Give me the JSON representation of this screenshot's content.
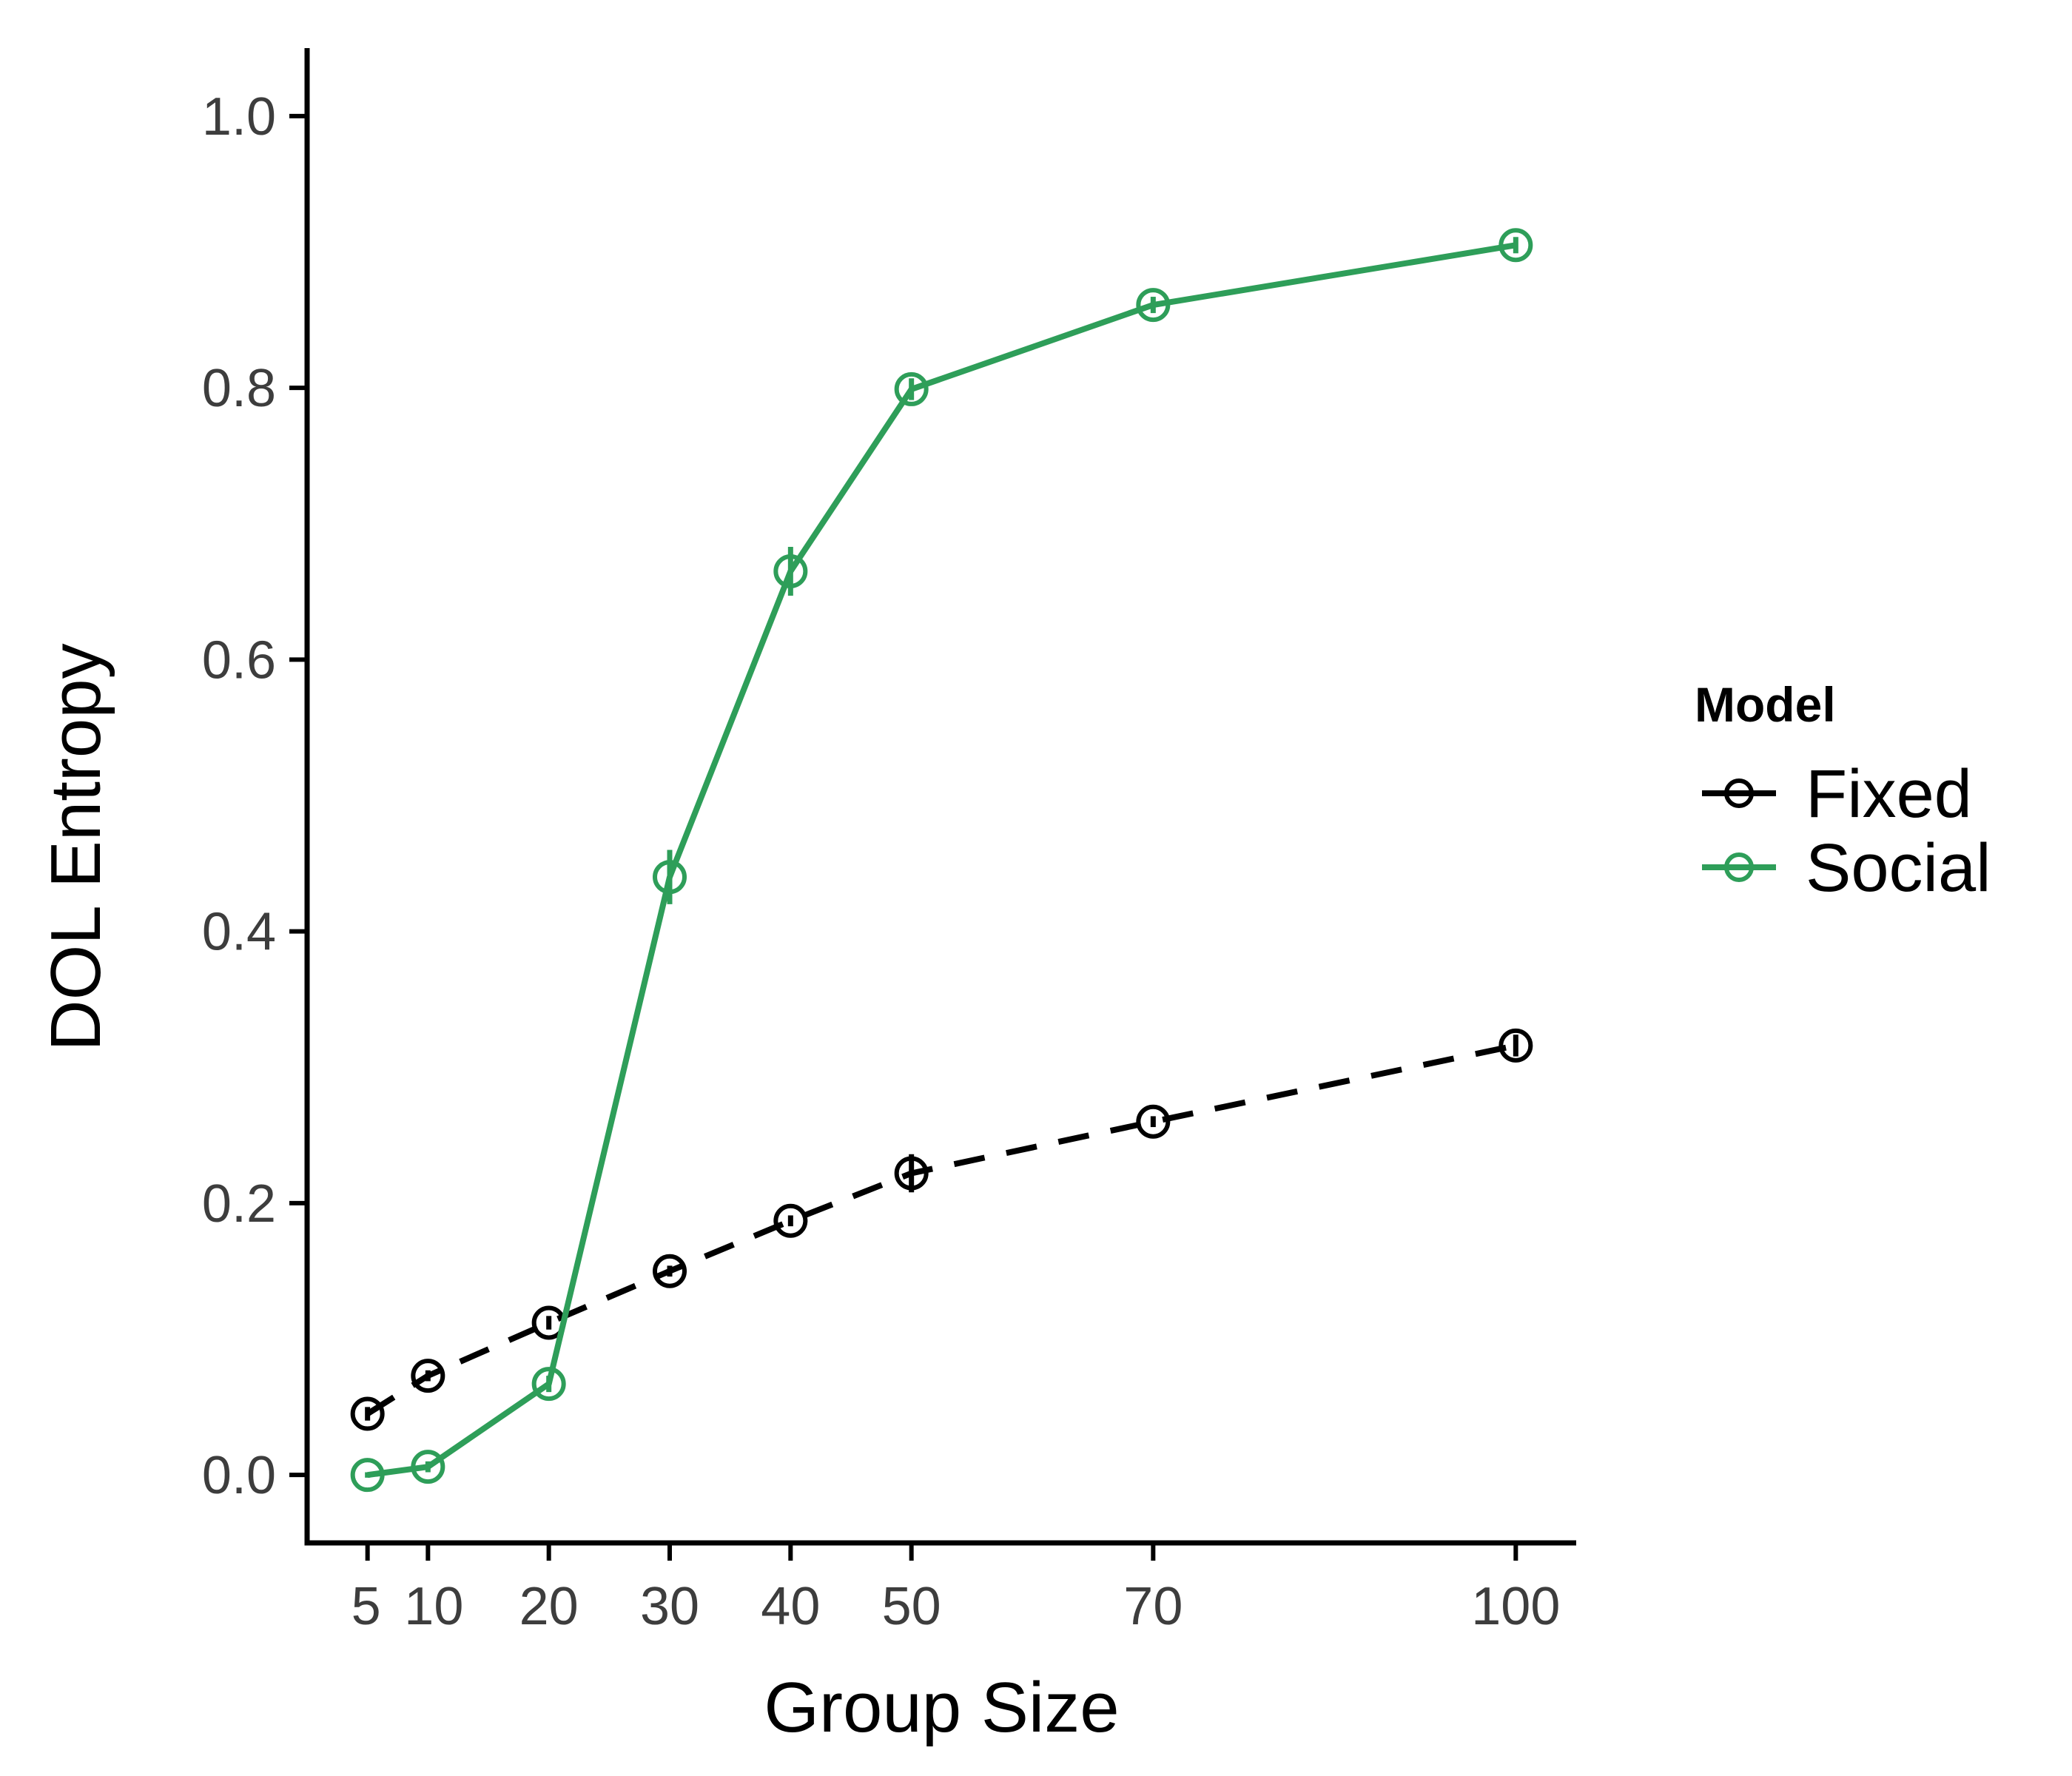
{
  "chart_data": {
    "type": "line",
    "xlabel": "Group Size",
    "ylabel": "DOL Entropy",
    "x": [
      5,
      10,
      20,
      30,
      40,
      50,
      70,
      100
    ],
    "x_ticks": [
      5,
      10,
      20,
      30,
      40,
      50,
      70,
      100
    ],
    "x_tick_labels": [
      "5",
      "10",
      "20",
      "30",
      "40",
      "50",
      "70",
      "100"
    ],
    "xlim": [
      0,
      105
    ],
    "ylim": [
      -0.05,
      1.05
    ],
    "y_ticks": [
      0.0,
      0.2,
      0.4,
      0.6,
      0.8,
      1.0
    ],
    "y_tick_labels": [
      "0.0",
      "0.2",
      "0.4",
      "0.6",
      "0.8",
      "1.0"
    ],
    "grid": false,
    "legend": {
      "title": "Model",
      "placement": "right"
    },
    "series": [
      {
        "name": "Fixed",
        "color": "#000000",
        "line_style": "dashed",
        "marker": "open-circle",
        "values": [
          0.045,
          0.073,
          0.112,
          0.15,
          0.187,
          0.222,
          0.26,
          0.316
        ],
        "error": [
          0.005,
          0.004,
          0.005,
          0.004,
          0.004,
          0.014,
          0.004,
          0.008
        ]
      },
      {
        "name": "Social",
        "color": "#2e9e59",
        "line_style": "solid",
        "marker": "open-circle",
        "values": [
          0.0,
          0.006,
          0.067,
          0.44,
          0.665,
          0.799,
          0.861,
          0.905
        ],
        "error": [
          0.002,
          0.004,
          0.006,
          0.02,
          0.018,
          0.008,
          0.006,
          0.006
        ]
      }
    ]
  }
}
